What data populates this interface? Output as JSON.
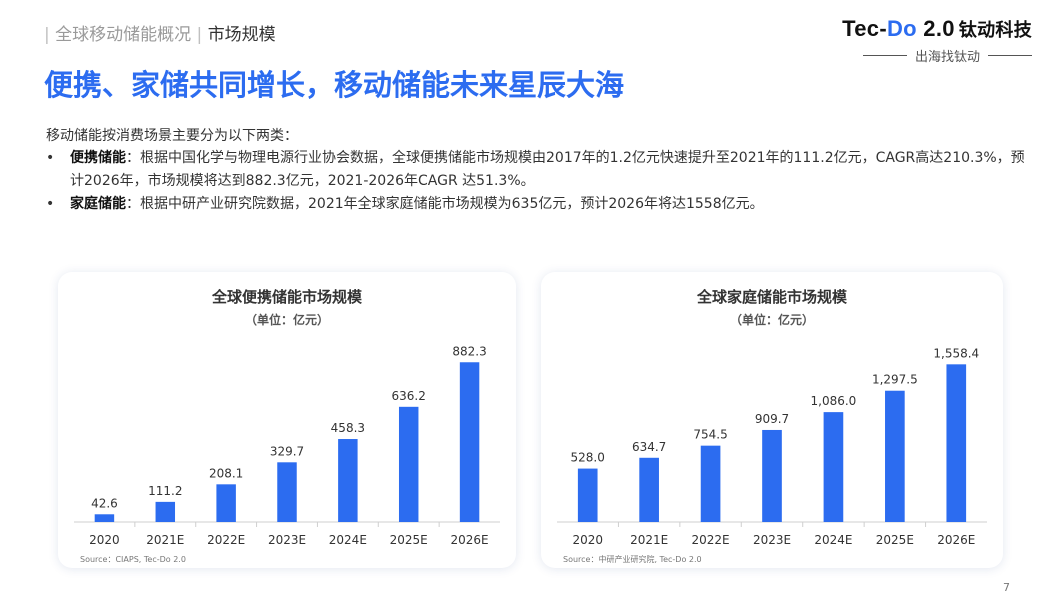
{
  "header": {
    "breadcrumb_section": "全球移动储能概况",
    "breadcrumb_current": "市场规模",
    "separator": "|"
  },
  "logo": {
    "brand_pre": "Tec-",
    "brand_accent": "Do",
    "brand_version": " 2.0",
    "brand_cn": "钛动科技",
    "tagline": "出海找钛动"
  },
  "slide_title": "便携、家储共同增长，移动储能未来星辰大海",
  "intro": "移动储能按消费场景主要分为以下两类：",
  "bullets": [
    {
      "label": "便携储能",
      "text": "：根据中国化学与物理电源行业协会数据，全球便携储能市场规模由2017年的1.2亿元快速提升至2021年的111.2亿元，CAGR高达210.3%，预计2026年，市场规模将达到882.3亿元，2021-2026年CAGR 达51.3%。"
    },
    {
      "label": "家庭储能",
      "text": "：根据中研产业研究院数据，2021年全球家庭储能市场规模为635亿元，预计2026年将达1558亿元。"
    }
  ],
  "chart_data": [
    {
      "type": "bar",
      "title": "全球便携储能市场规模",
      "subtitle": "（单位：亿元）",
      "categories": [
        "2020",
        "2021E",
        "2022E",
        "2023E",
        "2024E",
        "2025E",
        "2026E"
      ],
      "values": [
        42.6,
        111.2,
        208.1,
        329.7,
        458.3,
        636.2,
        882.3
      ],
      "value_labels": [
        "42.6",
        "111.2",
        "208.1",
        "329.7",
        "458.3",
        "636.2",
        "882.3"
      ],
      "ylim": [
        0,
        950
      ],
      "grid": false,
      "legend": "none",
      "bar_color": "#2c6cf0",
      "source": "Source：CIAPS, Tec-Do 2.0"
    },
    {
      "type": "bar",
      "title": "全球家庭储能市场规模",
      "subtitle": "（单位：亿元）",
      "categories": [
        "2020",
        "2021E",
        "2022E",
        "2023E",
        "2024E",
        "2025E",
        "2026E"
      ],
      "values": [
        528.0,
        634.7,
        754.5,
        909.7,
        1086.0,
        1297.5,
        1558.4
      ],
      "value_labels": [
        "528.0",
        "634.7",
        "754.5",
        "909.7",
        "1,086.0",
        "1,297.5",
        "1,558.4"
      ],
      "ylim": [
        0,
        1700
      ],
      "grid": false,
      "legend": "none",
      "bar_color": "#2c6cf0",
      "source": "Source：中研产业研究院, Tec-Do 2.0"
    }
  ],
  "page_number": "7",
  "colors": {
    "accent": "#2c6cf0",
    "text": "#333333",
    "muted": "#9a9a9a"
  }
}
